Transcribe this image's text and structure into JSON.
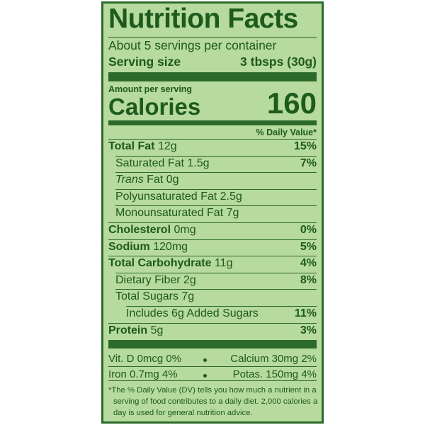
{
  "label": {
    "title": "Nutrition Facts",
    "servings": "About 5 servings per container",
    "serving_size": {
      "label": "Serving size",
      "value": "3 tbsps (30g)"
    },
    "calories": {
      "caption": "Amount per serving",
      "label": "Calories",
      "value": "160"
    },
    "dv_header": "% Daily Value*",
    "nutrients": [
      {
        "name": "Total Fat",
        "amount": "12g",
        "dv": "15%",
        "level": 0
      },
      {
        "name": "Saturated Fat 1.5g",
        "dv": "7%",
        "level": 1
      },
      {
        "name_italic": "Trans",
        "name": "Fat 0g",
        "level": 1
      },
      {
        "name": "Polyunsaturated Fat 2.5g",
        "level": 1
      },
      {
        "name": "Monounsaturated Fat 7g",
        "level": 1
      },
      {
        "name": "Cholesterol",
        "amount": "0mg",
        "dv": "0%",
        "level": 0
      },
      {
        "name": "Sodium",
        "amount": "120mg",
        "dv": "5%",
        "level": 0
      },
      {
        "name": "Total Carbohydrate",
        "amount": "11g",
        "dv": "4%",
        "level": 0
      },
      {
        "name": "Dietary Fiber 2g",
        "dv": "8%",
        "level": 1
      },
      {
        "name": "Total Sugars 7g",
        "level": 1
      },
      {
        "name": "Includes 6g Added Sugars",
        "dv": "11%",
        "level": 2
      },
      {
        "name": "Protein",
        "amount": "5g",
        "dv": "3%",
        "level": 0
      }
    ],
    "micronutrients": [
      [
        "Vit. D 0mcg 0%",
        "Calcium 30mg 2%"
      ],
      [
        "Iron 0.7mg 4%",
        "Potas. 150mg 4%"
      ]
    ],
    "footnote": "*The % Daily Value (DV) tells you how much a nutrient in a serving of food contributes to a daily diet. 2,000 calories a day is used for general nutrition advice."
  }
}
